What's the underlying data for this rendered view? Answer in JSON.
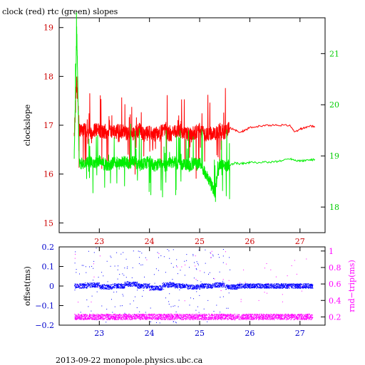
{
  "page": {
    "title": "clock (red) rtc (green) slopes",
    "footer": "2013-09-22  monopole.physics.ubc.ca"
  },
  "colors": {
    "clock": "#ff0000",
    "rtc": "#00ee00",
    "clock_axis": "#cc0000",
    "rtc_axis": "#00cc00",
    "offset": "#0000ff",
    "rndtrip": "#ff00ff",
    "bottom_axis": "#0000cc",
    "axis": "#000000"
  },
  "chart_data": [
    {
      "type": "line",
      "title": "clock (red) rtc (green) slopes",
      "xlabel": "",
      "ylabel": "clockslope",
      "x_ticks": [
        "23",
        "24",
        "25",
        "26",
        "27"
      ],
      "xlim": [
        22.2,
        27.5
      ],
      "y_left_ticks": [
        "15",
        "16",
        "17",
        "18",
        "19"
      ],
      "ylim_left": [
        14.8,
        19.2
      ],
      "y_right_ticks": [
        "18",
        "19",
        "20",
        "21"
      ],
      "ylim_right": [
        17.5,
        21.7
      ],
      "grid": false,
      "series": [
        {
          "name": "clock (red)",
          "axis": "left",
          "x": [
            22.5,
            22.55,
            22.6,
            22.7,
            22.8,
            22.9,
            23.0,
            23.1,
            23.2,
            23.3,
            23.4,
            23.5,
            23.6,
            23.7,
            23.8,
            23.9,
            24.0,
            24.1,
            24.2,
            24.3,
            24.4,
            24.5,
            24.6,
            24.7,
            24.8,
            24.9,
            25.0,
            25.1,
            25.2,
            25.3,
            25.4,
            25.5,
            25.6,
            25.7,
            25.8,
            25.9,
            26.0,
            26.2,
            26.4,
            26.6,
            26.8,
            26.9,
            27.0,
            27.1,
            27.2,
            27.3
          ],
          "y": [
            16.8,
            17.9,
            16.9,
            16.9,
            16.85,
            16.9,
            16.9,
            16.85,
            16.9,
            16.85,
            16.9,
            16.85,
            16.8,
            16.85,
            16.9,
            16.8,
            16.85,
            16.8,
            16.85,
            16.9,
            16.8,
            16.85,
            16.9,
            16.85,
            16.8,
            16.85,
            16.9,
            16.8,
            16.85,
            16.8,
            16.9,
            16.85,
            16.95,
            16.9,
            16.85,
            16.9,
            16.95,
            16.98,
            17.0,
            17.0,
            17.0,
            16.85,
            16.92,
            16.95,
            16.98,
            16.97
          ]
        },
        {
          "name": "rtc (green)",
          "axis": "right",
          "x": [
            22.5,
            22.55,
            22.6,
            22.7,
            22.8,
            22.9,
            23.0,
            23.1,
            23.2,
            23.3,
            23.4,
            23.5,
            23.6,
            23.7,
            23.8,
            23.9,
            24.0,
            24.1,
            24.2,
            24.3,
            24.4,
            24.5,
            24.6,
            24.7,
            24.8,
            24.9,
            25.0,
            25.1,
            25.2,
            25.3,
            25.4,
            25.5,
            25.6,
            25.7,
            25.8,
            25.9,
            26.0,
            26.2,
            26.4,
            26.6,
            26.8,
            26.9,
            27.0,
            27.1,
            27.2,
            27.3
          ],
          "y": [
            18.9,
            21.5,
            18.85,
            18.85,
            18.9,
            18.85,
            18.9,
            18.85,
            18.8,
            18.9,
            18.85,
            18.9,
            18.85,
            18.9,
            18.8,
            18.85,
            18.9,
            18.8,
            18.85,
            18.8,
            18.85,
            18.9,
            18.8,
            18.85,
            18.8,
            18.85,
            18.85,
            18.7,
            18.5,
            18.3,
            18.85,
            18.8,
            18.82,
            18.86,
            18.85,
            18.86,
            18.87,
            18.87,
            18.88,
            18.9,
            18.95,
            18.92,
            18.9,
            18.91,
            18.92,
            18.93
          ]
        }
      ]
    },
    {
      "type": "scatter",
      "xlabel": "",
      "ylabel": "offset(ms)",
      "y2label": "rnd−trip(ms)",
      "x_ticks": [
        "23",
        "24",
        "25",
        "26",
        "27"
      ],
      "xlim": [
        22.2,
        27.5
      ],
      "y_left_ticks": [
        "0.2",
        "0.1",
        "0",
        "−0.1",
        "−0.2"
      ],
      "ylim_left": [
        -0.2,
        0.2
      ],
      "y_right_ticks": [
        "1",
        "0.8",
        "0.6",
        "0.4",
        "0.2"
      ],
      "ylim_right": [
        0.1,
        1.05
      ],
      "grid": false,
      "series": [
        {
          "name": "offset(ms)",
          "axis": "left",
          "x": [
            22.5,
            22.75,
            23.0,
            23.25,
            23.5,
            23.75,
            24.0,
            24.25,
            24.5,
            24.75,
            25.0,
            25.25,
            25.5,
            25.75,
            26.0,
            26.25,
            26.5,
            26.75,
            27.0,
            27.25
          ],
          "y": [
            0.0,
            0.005,
            -0.005,
            0.0,
            0.01,
            0.0,
            -0.01,
            0.005,
            0.0,
            -0.005,
            0.0,
            0.005,
            -0.005,
            0.0,
            0.0,
            0.0,
            0.0,
            0.0,
            0.0,
            0.0
          ]
        },
        {
          "name": "rnd−trip(ms)",
          "axis": "right",
          "x": [
            22.5,
            22.75,
            23.0,
            23.25,
            23.5,
            23.75,
            24.0,
            24.25,
            24.5,
            24.75,
            25.0,
            25.25,
            25.5,
            25.75,
            26.0,
            26.25,
            26.5,
            26.75,
            27.0,
            27.25
          ],
          "y": [
            0.2,
            0.2,
            0.2,
            0.2,
            0.2,
            0.2,
            0.2,
            0.2,
            0.2,
            0.2,
            0.2,
            0.2,
            0.2,
            0.2,
            0.2,
            0.2,
            0.2,
            0.2,
            0.2,
            0.2
          ]
        }
      ]
    }
  ]
}
